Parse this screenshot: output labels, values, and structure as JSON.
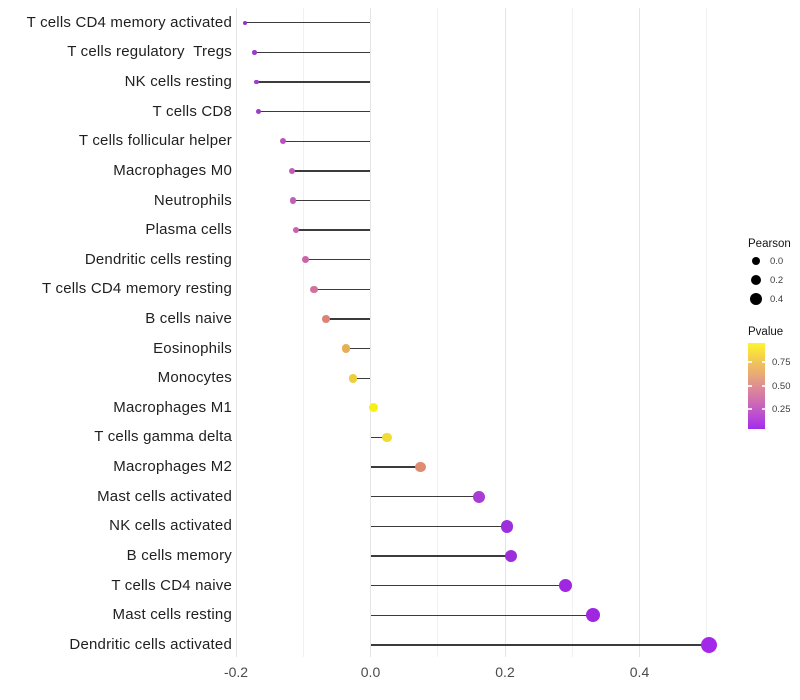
{
  "figure": {
    "background": "#ffffff",
    "stem_color": "#3b3b3b",
    "gridline_major_color": "#e4e4e4",
    "gridline_minor_color": "#f1f1f1"
  },
  "chart_data": {
    "type": "scatter",
    "variant": "lollipop",
    "orientation": "horizontal",
    "title": "",
    "xlabel": "",
    "ylabel": "",
    "grid": true,
    "baseline": 0,
    "x_axis": {
      "range": [
        -0.225,
        0.535
      ],
      "ticks": [
        -0.2,
        0.0,
        0.2,
        0.4
      ],
      "tick_labels": [
        "-0.2",
        "0.0",
        "0.2",
        "0.4"
      ],
      "minor_gridlines": [
        -0.1,
        0.1,
        0.3,
        0.5
      ]
    },
    "points": [
      {
        "label": "T cells CD4 memory activated",
        "pearson": -0.187,
        "color": "#9233CE"
      },
      {
        "label": "T cells regulatory  Tregs",
        "pearson": -0.172,
        "color": "#9C3BCA"
      },
      {
        "label": "NK cells resting",
        "pearson": -0.169,
        "color": "#9E3DC8"
      },
      {
        "label": "T cells CD8",
        "pearson": -0.167,
        "color": "#9E3DC8"
      },
      {
        "label": "T cells follicular helper",
        "pearson": -0.13,
        "color": "#BB50BE"
      },
      {
        "label": "Macrophages M0",
        "pearson": -0.117,
        "color": "#C35BB9"
      },
      {
        "label": "Neutrophils",
        "pearson": -0.115,
        "color": "#C45DB7"
      },
      {
        "label": "Plasma cells",
        "pearson": -0.111,
        "color": "#C862B3"
      },
      {
        "label": "Dendritic cells resting",
        "pearson": -0.097,
        "color": "#CD64A9"
      },
      {
        "label": "T cells CD4 memory resting",
        "pearson": -0.084,
        "color": "#D2729C"
      },
      {
        "label": "B cells naive",
        "pearson": -0.066,
        "color": "#DB8379"
      },
      {
        "label": "Eosinophils",
        "pearson": -0.036,
        "color": "#E6AE55"
      },
      {
        "label": "Monocytes",
        "pearson": -0.026,
        "color": "#EDCF3B"
      },
      {
        "label": "Macrophages M1",
        "pearson": 0.005,
        "color": "#F7F018"
      },
      {
        "label": "T cells gamma delta",
        "pearson": 0.025,
        "color": "#F0DC33"
      },
      {
        "label": "Macrophages M2",
        "pearson": 0.074,
        "color": "#DF8B72"
      },
      {
        "label": "Mast cells activated",
        "pearson": 0.161,
        "color": "#A93CD5"
      },
      {
        "label": "NK cells activated",
        "pearson": 0.203,
        "color": "#9D2EDC"
      },
      {
        "label": "B cells memory",
        "pearson": 0.209,
        "color": "#9D2EDC"
      },
      {
        "label": "T cells CD4 naive",
        "pearson": 0.29,
        "color": "#9F27E0"
      },
      {
        "label": "Mast cells resting",
        "pearson": 0.331,
        "color": "#A027E0"
      },
      {
        "label": "Dendritic cells activated",
        "pearson": 0.503,
        "color": "#A328E8"
      }
    ],
    "legend": {
      "position": "right",
      "size": {
        "title": "Pearson",
        "items": [
          {
            "value": 0.0,
            "label": "0.0"
          },
          {
            "value": 0.2,
            "label": "0.2"
          },
          {
            "value": 0.4,
            "label": "0.4"
          }
        ]
      },
      "color": {
        "title": "Pvalue",
        "ticks": [
          {
            "label": "0.75"
          },
          {
            "label": "0.50"
          },
          {
            "label": "0.25"
          }
        ],
        "gradient_bottom_to_top": [
          "#A22CEE",
          "#B746D8",
          "#C75FC0",
          "#D478A8",
          "#DE8E92",
          "#E8A878",
          "#F0BE5E",
          "#F7DA42",
          "#FCF42E"
        ]
      }
    }
  }
}
